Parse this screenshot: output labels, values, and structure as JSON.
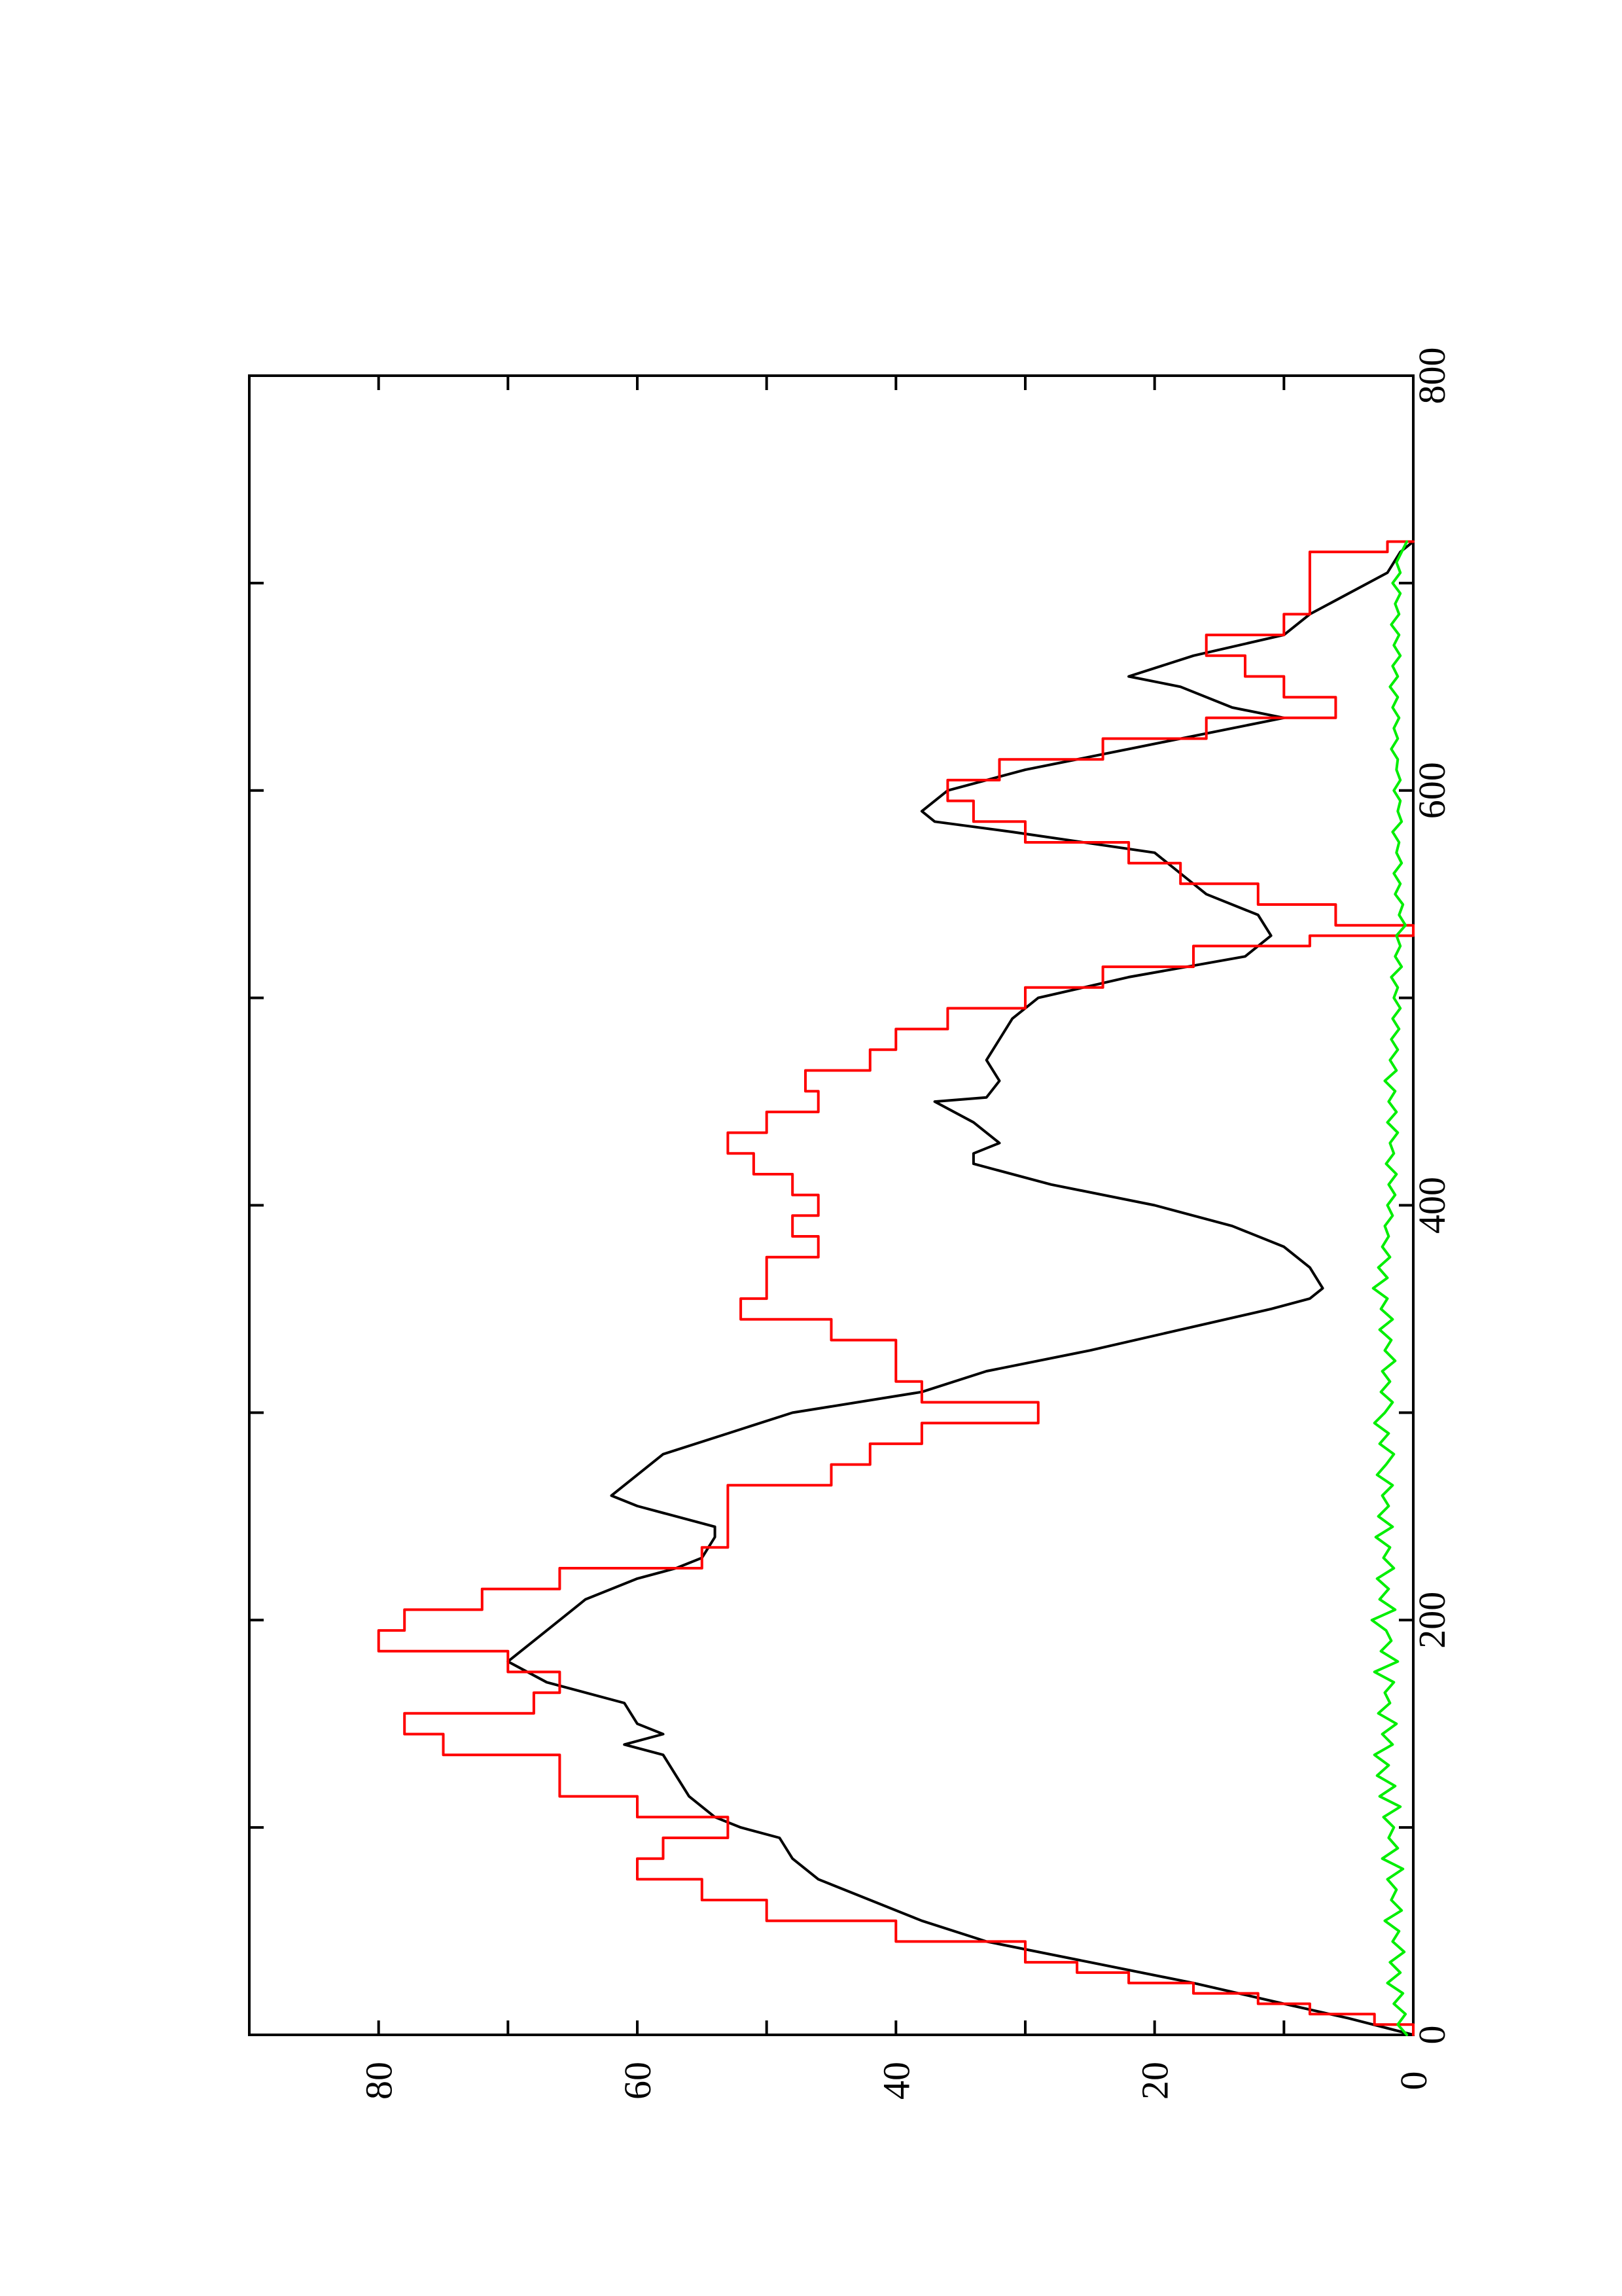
{
  "chart_data": {
    "type": "line",
    "orientation": "rotated-90-ccw",
    "xlim": [
      0,
      800
    ],
    "ylim": [
      0,
      90
    ],
    "x_ticks": [
      0,
      100,
      200,
      300,
      400,
      500,
      600,
      700,
      800
    ],
    "x_tick_labels": [
      "0",
      "",
      "200",
      "",
      "400",
      "",
      "600",
      "",
      "800"
    ],
    "y_ticks": [
      0,
      10,
      20,
      30,
      40,
      50,
      60,
      70,
      80
    ],
    "y_tick_labels": [
      "0",
      "",
      "20",
      "",
      "40",
      "",
      "60",
      "",
      "80"
    ],
    "grid": false,
    "legend": "none",
    "series": [
      {
        "color": "#000000",
        "style": "line",
        "x": [
          0,
          8,
          15,
          25,
          35,
          45,
          55,
          65,
          75,
          85,
          95,
          100,
          105,
          115,
          125,
          135,
          140,
          145,
          150,
          160,
          170,
          180,
          190,
          200,
          210,
          220,
          225,
          230,
          240,
          245,
          255,
          260,
          270,
          280,
          290,
          300,
          310,
          320,
          330,
          340,
          350,
          355,
          360,
          370,
          380,
          390,
          400,
          410,
          420,
          425,
          430,
          440,
          450,
          452,
          460,
          470,
          480,
          490,
          500,
          510,
          520,
          530,
          540,
          550,
          560,
          570,
          580,
          585,
          590,
          600,
          610,
          620,
          630,
          635,
          640,
          650,
          655,
          665,
          675,
          685,
          695,
          705,
          715,
          720
        ],
        "y": [
          0,
          5,
          10,
          17,
          25,
          33,
          38,
          42,
          46,
          48,
          49,
          52,
          54,
          56,
          57,
          58,
          61,
          58,
          60,
          61,
          67,
          70,
          68,
          66,
          64,
          60,
          57,
          55,
          54,
          54,
          60,
          62,
          60,
          58,
          53,
          48,
          38,
          33,
          25,
          18,
          11,
          8,
          7,
          8,
          10,
          14,
          20,
          28,
          34,
          34,
          32,
          34,
          37,
          33,
          32,
          33,
          32,
          31,
          29,
          22,
          13,
          11,
          12,
          16,
          18,
          20,
          31,
          37,
          38,
          36,
          30,
          22,
          14,
          10,
          14,
          18,
          22,
          17,
          10,
          8,
          5,
          2,
          1,
          0
        ]
      },
      {
        "color": "#ff0000",
        "style": "step",
        "x": [
          0,
          5,
          10,
          15,
          20,
          25,
          30,
          35,
          45,
          55,
          65,
          75,
          85,
          95,
          105,
          115,
          125,
          135,
          145,
          155,
          165,
          175,
          185,
          195,
          205,
          215,
          225,
          235,
          245,
          255,
          265,
          275,
          285,
          295,
          305,
          315,
          325,
          335,
          345,
          355,
          365,
          375,
          385,
          395,
          405,
          415,
          425,
          435,
          445,
          455,
          465,
          475,
          485,
          495,
          505,
          515,
          525,
          530,
          535,
          545,
          555,
          565,
          575,
          585,
          595,
          605,
          615,
          625,
          635,
          645,
          655,
          665,
          675,
          685,
          695,
          705,
          715,
          720
        ],
        "y": [
          0,
          3,
          8,
          12,
          17,
          22,
          26,
          30,
          40,
          50,
          55,
          60,
          58,
          53,
          60,
          66,
          66,
          75,
          78,
          68,
          66,
          70,
          80,
          78,
          72,
          66,
          55,
          53,
          53,
          53,
          45,
          42,
          38,
          29,
          38,
          40,
          40,
          45,
          52,
          50,
          50,
          46,
          48,
          46,
          48,
          51,
          53,
          50,
          46,
          47,
          42,
          40,
          36,
          30,
          24,
          17,
          8,
          0,
          6,
          12,
          18,
          22,
          30,
          34,
          36,
          32,
          24,
          16,
          6,
          10,
          13,
          16,
          10,
          8,
          8,
          8,
          2,
          0
        ]
      },
      {
        "color": "#00ee00",
        "style": "line",
        "x": [
          0,
          5,
          10,
          15,
          20,
          25,
          30,
          35,
          40,
          45,
          50,
          55,
          60,
          65,
          70,
          75,
          80,
          85,
          90,
          95,
          100,
          105,
          110,
          115,
          120,
          125,
          130,
          135,
          140,
          145,
          150,
          155,
          160,
          165,
          170,
          175,
          180,
          185,
          190,
          195,
          200,
          205,
          210,
          215,
          220,
          225,
          230,
          235,
          240,
          245,
          250,
          255,
          260,
          265,
          270,
          275,
          280,
          285,
          290,
          295,
          300,
          305,
          310,
          315,
          320,
          325,
          330,
          335,
          340,
          345,
          350,
          355,
          360,
          365,
          370,
          375,
          380,
          385,
          390,
          395,
          400,
          405,
          410,
          415,
          420,
          425,
          430,
          435,
          440,
          445,
          450,
          455,
          460,
          465,
          470,
          475,
          480,
          485,
          490,
          495,
          500,
          505,
          510,
          515,
          520,
          525,
          530,
          535,
          540,
          545,
          550,
          555,
          560,
          565,
          570,
          575,
          580,
          585,
          590,
          595,
          600,
          605,
          610,
          615,
          620,
          625,
          630,
          635,
          640,
          645,
          650,
          655,
          660,
          665,
          670,
          675,
          680,
          685,
          690,
          695,
          700,
          705,
          710,
          715,
          720
        ],
        "y": [
          0.5,
          1.2,
          0.6,
          1.5,
          0.8,
          2.0,
          1.0,
          1.8,
          0.7,
          1.6,
          1.1,
          2.2,
          0.9,
          1.7,
          1.3,
          2.0,
          0.8,
          2.4,
          1.2,
          1.9,
          1.5,
          2.3,
          1.0,
          2.6,
          1.4,
          2.8,
          1.9,
          3.0,
          1.6,
          2.4,
          1.3,
          2.7,
          1.8,
          2.2,
          1.5,
          3.0,
          1.2,
          2.5,
          1.7,
          2.1,
          3.2,
          1.4,
          2.6,
          1.9,
          2.8,
          1.5,
          2.3,
          1.8,
          2.9,
          1.6,
          2.7,
          1.9,
          2.4,
          1.6,
          2.8,
          2.1,
          1.5,
          2.6,
          1.9,
          3.0,
          2.2,
          1.6,
          2.5,
          1.8,
          2.4,
          1.4,
          2.2,
          1.7,
          2.6,
          1.6,
          2.5,
          2.0,
          3.1,
          2.0,
          2.7,
          1.8,
          2.4,
          1.9,
          2.2,
          1.6,
          2.0,
          1.4,
          1.9,
          1.3,
          2.1,
          1.5,
          1.8,
          1.2,
          2.0,
          1.3,
          1.9,
          1.4,
          2.2,
          1.3,
          1.8,
          1.2,
          1.7,
          1.1,
          1.6,
          1.0,
          1.5,
          1.2,
          1.7,
          0.9,
          1.4,
          1.0,
          1.3,
          0.6,
          1.1,
          0.8,
          1.4,
          1.0,
          1.5,
          0.9,
          1.3,
          1.1,
          1.6,
          0.9,
          1.2,
          1.0,
          1.5,
          1.0,
          1.3,
          1.2,
          1.7,
          1.2,
          1.5,
          1.1,
          1.6,
          1.2,
          1.8,
          1.2,
          1.6,
          1.0,
          1.5,
          1.1,
          1.7,
          1.1,
          1.4,
          1.0,
          1.6,
          1.0,
          1.3,
          0.9,
          0.5
        ]
      }
    ]
  }
}
